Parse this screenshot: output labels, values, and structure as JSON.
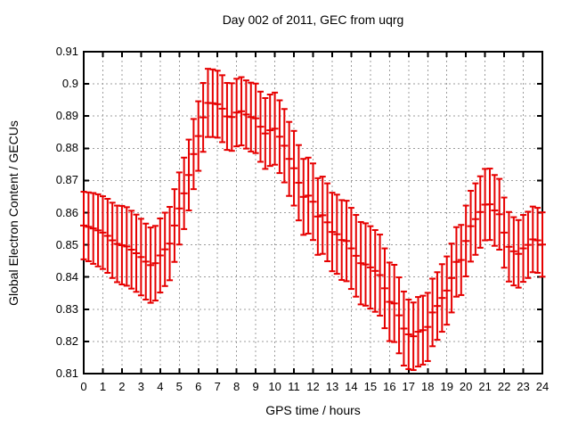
{
  "style": {
    "background": "#ffffff",
    "axis_color": "#000000",
    "grid_color": "#9c9c9c",
    "text_color": "#000000",
    "errorbar_color": "#e60000"
  },
  "chart_data": {
    "type": "scatter",
    "style": "yerrorbars",
    "title": "Day 002 of 2011, GEC from uqrg",
    "xlabel": "GPS time / hours",
    "ylabel": "Global Electron Content / GECUs",
    "xlim": [
      0,
      24
    ],
    "ylim": [
      0.81,
      0.91
    ],
    "grid": true,
    "legend": "none",
    "xticks": [
      0,
      1,
      2,
      3,
      4,
      5,
      6,
      7,
      8,
      9,
      10,
      11,
      12,
      13,
      14,
      15,
      16,
      17,
      18,
      19,
      20,
      21,
      22,
      23,
      24
    ],
    "ytick_values": [
      0.81,
      0.82,
      0.83,
      0.84,
      0.85,
      0.86,
      0.87,
      0.88,
      0.89,
      0.9,
      0.91
    ],
    "ytick_labels": [
      "0.81",
      "0.82",
      "0.83",
      "0.84",
      "0.85",
      "0.86",
      "0.87",
      "0.88",
      "0.89",
      "0.9",
      "0.91"
    ],
    "series": [
      {
        "name": "GEC",
        "color": "#e60000",
        "x": [
          0,
          0.25,
          0.5,
          0.75,
          1,
          1.25,
          1.5,
          1.75,
          2,
          2.25,
          2.5,
          2.75,
          3,
          3.25,
          3.5,
          3.75,
          4,
          4.25,
          4.5,
          4.75,
          5,
          5.25,
          5.5,
          5.75,
          6,
          6.25,
          6.5,
          6.75,
          7,
          7.25,
          7.5,
          7.75,
          8,
          8.25,
          8.5,
          8.75,
          9,
          9.25,
          9.5,
          9.75,
          10,
          10.25,
          10.5,
          10.75,
          11,
          11.25,
          11.5,
          11.75,
          12,
          12.25,
          12.5,
          12.75,
          13,
          13.25,
          13.5,
          13.75,
          14,
          14.25,
          14.5,
          14.75,
          15,
          15.25,
          15.5,
          15.75,
          16,
          16.25,
          16.5,
          16.75,
          17,
          17.25,
          17.5,
          17.75,
          18,
          18.25,
          18.5,
          18.75,
          19,
          19.25,
          19.5,
          19.75,
          20,
          20.25,
          20.5,
          20.75,
          21,
          21.25,
          21.5,
          21.75,
          22,
          22.25,
          22.5,
          22.75,
          23,
          23.25,
          23.5,
          23.75,
          24
        ],
        "y": [
          0.856,
          0.8556,
          0.8551,
          0.8545,
          0.8538,
          0.8528,
          0.8514,
          0.8503,
          0.8499,
          0.8495,
          0.8485,
          0.8474,
          0.8462,
          0.8448,
          0.8437,
          0.8443,
          0.8467,
          0.8486,
          0.8504,
          0.856,
          0.8613,
          0.866,
          0.8717,
          0.8782,
          0.8838,
          0.8896,
          0.8941,
          0.894,
          0.8937,
          0.8923,
          0.8899,
          0.8897,
          0.8911,
          0.8915,
          0.8905,
          0.8897,
          0.8893,
          0.8867,
          0.8846,
          0.8856,
          0.8861,
          0.8836,
          0.8808,
          0.8767,
          0.8738,
          0.8693,
          0.8649,
          0.8653,
          0.8634,
          0.8588,
          0.8592,
          0.857,
          0.854,
          0.8533,
          0.8515,
          0.8512,
          0.8489,
          0.8466,
          0.8443,
          0.8439,
          0.843,
          0.8419,
          0.8406,
          0.8365,
          0.8323,
          0.8318,
          0.8281,
          0.824,
          0.8222,
          0.8216,
          0.823,
          0.8235,
          0.8245,
          0.829,
          0.831,
          0.8335,
          0.8358,
          0.8397,
          0.8447,
          0.8453,
          0.8512,
          0.8558,
          0.858,
          0.8602,
          0.8625,
          0.8626,
          0.8607,
          0.8595,
          0.8538,
          0.8494,
          0.848,
          0.8472,
          0.8489,
          0.85,
          0.8517,
          0.8514,
          0.8501
        ],
        "yerr": [
          0.0105,
          0.0107,
          0.011,
          0.0112,
          0.0113,
          0.0115,
          0.0117,
          0.0119,
          0.0122,
          0.0122,
          0.0121,
          0.012,
          0.0119,
          0.0118,
          0.0117,
          0.0116,
          0.0115,
          0.0114,
          0.0114,
          0.0113,
          0.0112,
          0.0111,
          0.011,
          0.0109,
          0.0108,
          0.0107,
          0.0106,
          0.0105,
          0.0104,
          0.0104,
          0.0104,
          0.0105,
          0.0105,
          0.0106,
          0.0106,
          0.0107,
          0.0108,
          0.0109,
          0.011,
          0.0111,
          0.0112,
          0.0113,
          0.0114,
          0.0115,
          0.0116,
          0.0117,
          0.0118,
          0.0118,
          0.0119,
          0.0119,
          0.012,
          0.0121,
          0.0122,
          0.0123,
          0.0124,
          0.0125,
          0.0126,
          0.0127,
          0.0128,
          0.0128,
          0.0128,
          0.0127,
          0.0126,
          0.0124,
          0.0122,
          0.012,
          0.0118,
          0.0115,
          0.0108,
          0.0105,
          0.0108,
          0.0107,
          0.0106,
          0.0105,
          0.0105,
          0.0105,
          0.0106,
          0.0107,
          0.0108,
          0.0109,
          0.011,
          0.011,
          0.0111,
          0.0111,
          0.0111,
          0.0111,
          0.011,
          0.011,
          0.0109,
          0.0108,
          0.0106,
          0.0105,
          0.0104,
          0.0103,
          0.0102,
          0.0101,
          0.01
        ]
      }
    ]
  }
}
